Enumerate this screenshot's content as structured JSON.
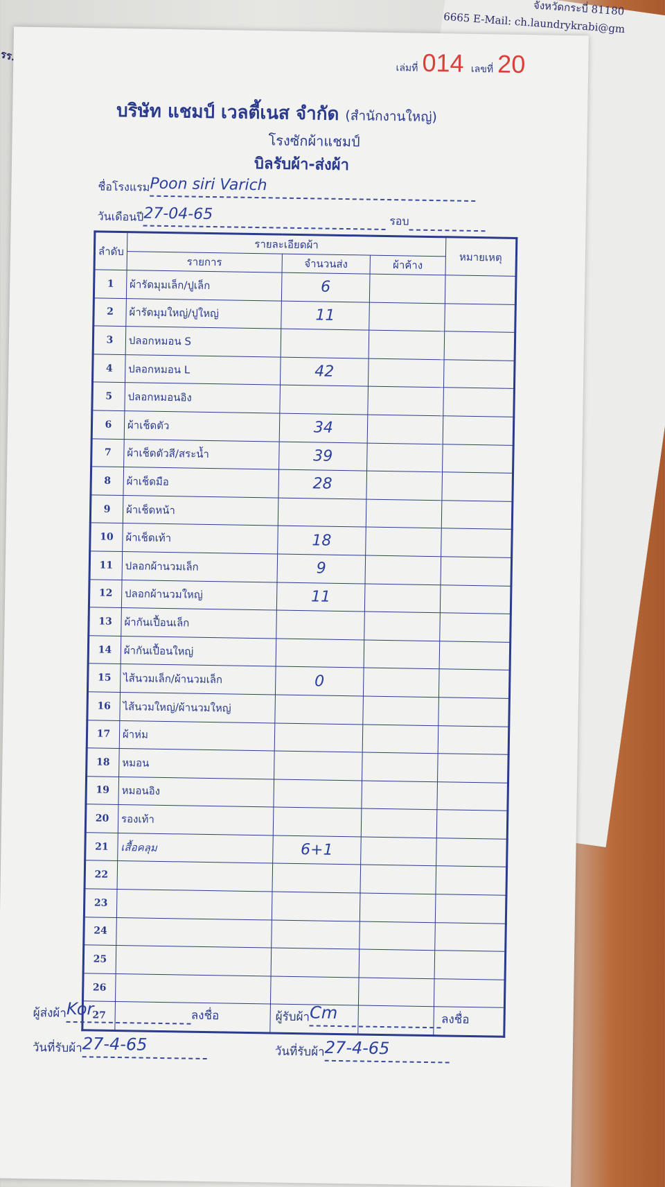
{
  "background": {
    "top_right_text": "จังหวัดกระบี่ 81180",
    "top_right_email": "6665 E-Mail: ch.laundrykrabi@gm",
    "left_text": "รร.ภูคาหลา"
  },
  "header": {
    "book_label": "เล่มที่",
    "book_number": "014",
    "number_label": "เลขที่",
    "number": "20",
    "company": "บริษัท แชมป์ เวลตี้เนส จำกัด",
    "branch": "(สำนักงานใหญ่)",
    "subtitle": "โรงซักผ้าแชมป์",
    "form_title": "บิลรับผ้า-ส่งผ้า"
  },
  "fields": {
    "hotel_label": "ชื่อโรงแรม",
    "hotel_value": "Poon siri Varich",
    "date_label": "วันเดือนปี",
    "date_value": "27-04-65",
    "round_label": "รอบ",
    "round_value": ""
  },
  "table": {
    "col_no": "ลำดับ",
    "col_details": "รายละเอียดผ้า",
    "col_item": "รายการ",
    "col_qty": "จำนวนส่ง",
    "col_pending": "ผ้าค้าง",
    "col_remark": "หมายเหตุ",
    "rows": [
      {
        "no": "1",
        "item": "ผ้ารัดมุมเล็ก/ปูเล็ก",
        "qty": "6"
      },
      {
        "no": "2",
        "item": "ผ้ารัดมุมใหญ่/ปูใหญ่",
        "qty": "11"
      },
      {
        "no": "3",
        "item": "ปลอกหมอน S",
        "qty": ""
      },
      {
        "no": "4",
        "item": "ปลอกหมอน L",
        "qty": "42"
      },
      {
        "no": "5",
        "item": "ปลอกหมอนอิง",
        "qty": ""
      },
      {
        "no": "6",
        "item": "ผ้าเช็ดตัว",
        "qty": "34"
      },
      {
        "no": "7",
        "item": "ผ้าเช็ดตัวสี/สระน้ำ",
        "qty": "39"
      },
      {
        "no": "8",
        "item": "ผ้าเช็ดมือ",
        "qty": "28"
      },
      {
        "no": "9",
        "item": "ผ้าเช็ดหน้า",
        "qty": ""
      },
      {
        "no": "10",
        "item": "ผ้าเช็ดเท้า",
        "qty": "18"
      },
      {
        "no": "11",
        "item": "ปลอกผ้านวมเล็ก",
        "qty": "9"
      },
      {
        "no": "12",
        "item": "ปลอกผ้านวมใหญ่",
        "qty": "11"
      },
      {
        "no": "13",
        "item": "ผ้ากันเปื้อนเล็ก",
        "qty": ""
      },
      {
        "no": "14",
        "item": "ผ้ากันเปื้อนใหญ่",
        "qty": ""
      },
      {
        "no": "15",
        "item": "ไส้นวมเล็ก/ผ้านวมเล็ก",
        "qty": "0"
      },
      {
        "no": "16",
        "item": "ไส้นวมใหญ่/ผ้านวมใหญ่",
        "qty": ""
      },
      {
        "no": "17",
        "item": "ผ้าห่ม",
        "qty": ""
      },
      {
        "no": "18",
        "item": "หมอน",
        "qty": ""
      },
      {
        "no": "19",
        "item": "หมอนอิง",
        "qty": ""
      },
      {
        "no": "20",
        "item": "รองเท้า",
        "qty": ""
      },
      {
        "no": "21",
        "item": "เสื้อคลุม",
        "qty": "6+1"
      },
      {
        "no": "22",
        "item": "",
        "qty": ""
      },
      {
        "no": "23",
        "item": "",
        "qty": ""
      },
      {
        "no": "24",
        "item": "",
        "qty": ""
      },
      {
        "no": "25",
        "item": "",
        "qty": ""
      },
      {
        "no": "26",
        "item": "",
        "qty": ""
      },
      {
        "no": "27",
        "item": "",
        "qty": ""
      }
    ]
  },
  "footer": {
    "sender_label": "ผู้ส่งผ้า",
    "sender_value": "Kor",
    "sign_label": "ลงชื่อ",
    "receiver_label": "ผู้รับผ้า",
    "receiver_value": "Cm",
    "sender_date_label": "วันที่รับผ้า",
    "sender_date_value": "27-4-65",
    "receiver_date_label": "วันที่รับผ้า",
    "receiver_date_value": "27-4-65"
  },
  "colors": {
    "ink": "#2a3a8c",
    "serial": "#d8403a",
    "paper": "#f2f2f0"
  }
}
